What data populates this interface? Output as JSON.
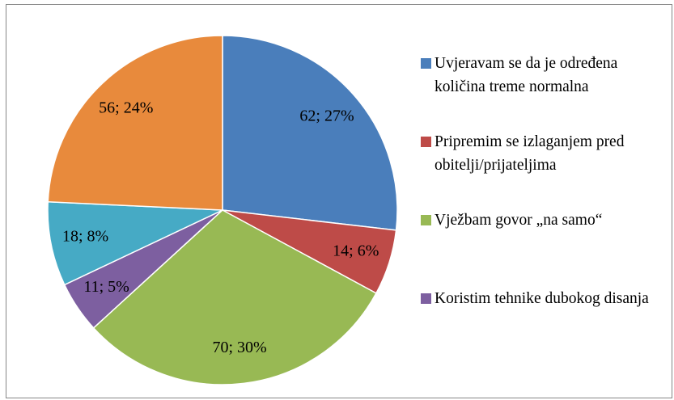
{
  "chart_data": {
    "type": "pie",
    "categories": [
      "Uvjeravam se da je određena količina treme normalna",
      "Pripremim se izlaganjem pred obitelji/prijateljima",
      "Vježbam govor „na samo“",
      "Koristim tehnike dubokog disanja",
      null,
      null
    ],
    "values": [
      62,
      14,
      70,
      11,
      18,
      56
    ],
    "value_labels": [
      "62; 27%",
      "14; 6%",
      "70; 30%",
      "11; 5%",
      "18; 8%",
      "56; 24%"
    ],
    "colors": [
      "#4a7ebb",
      "#be4b48",
      "#98b954",
      "#7d5fa0",
      "#46aac5",
      "#e88a3c"
    ]
  }
}
